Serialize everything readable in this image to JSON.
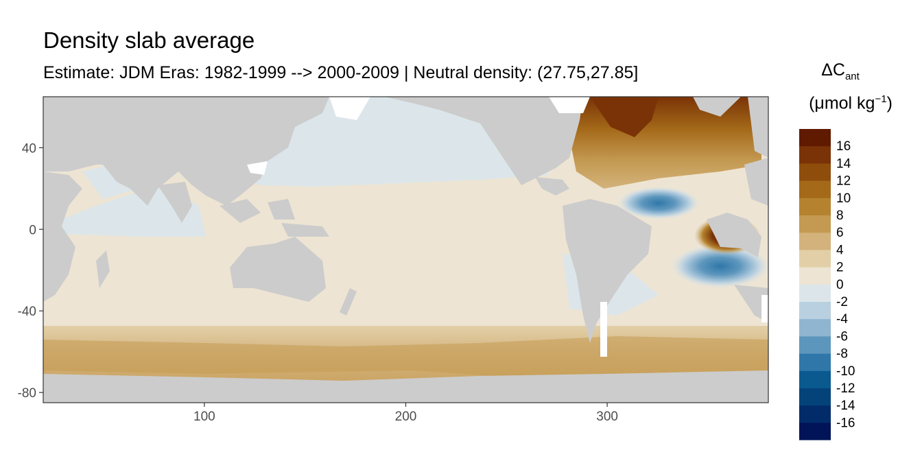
{
  "title": "Density slab average",
  "subtitle": "Estimate: JDM Eras: 1982-1999 --> 2000-2009 | Neutral density: (27.75,27.85]",
  "legend": {
    "title_main": "ΔC",
    "title_sub": "ant",
    "unit_pre": "(μmol kg",
    "unit_sup": "−1",
    "unit_post": ")",
    "bins": [
      {
        "label": "16",
        "color": "#5f1a00"
      },
      {
        "label": "14",
        "color": "#7a3306"
      },
      {
        "label": "12",
        "color": "#8f4d0c"
      },
      {
        "label": "10",
        "color": "#a46919"
      },
      {
        "label": "8",
        "color": "#b5832f"
      },
      {
        "label": "6",
        "color": "#c49a52"
      },
      {
        "label": "4",
        "color": "#d3b27b"
      },
      {
        "label": "2",
        "color": "#e2cfa7"
      },
      {
        "label": "0",
        "color": "#ede4d3"
      },
      {
        "label": "-2",
        "color": "#dce6ea"
      },
      {
        "label": "-4",
        "color": "#b9d0e0"
      },
      {
        "label": "-6",
        "color": "#8fb5d0"
      },
      {
        "label": "-8",
        "color": "#5d96bd"
      },
      {
        "label": "-10",
        "color": "#2f77a8"
      },
      {
        "label": "-12",
        "color": "#0a5a90"
      },
      {
        "label": "-14",
        "color": "#03437a"
      },
      {
        "label": "-16",
        "color": "#022b69"
      }
    ],
    "last_color": "#001457"
  },
  "chart_data": {
    "type": "heatmap",
    "x_ticks": [
      100,
      200,
      300
    ],
    "y_ticks": [
      40,
      0,
      -40,
      -80
    ],
    "xlim": [
      20,
      380
    ],
    "ylim": [
      -85,
      65
    ]
  }
}
